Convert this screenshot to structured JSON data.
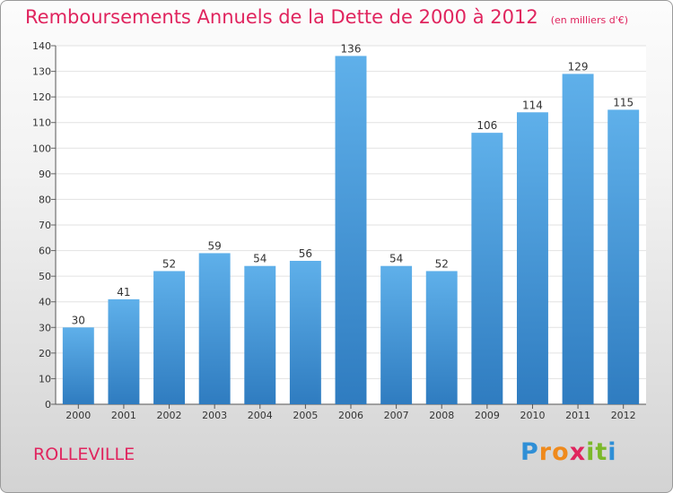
{
  "chart_data": {
    "type": "bar",
    "title": "Remboursements Annuels de la Dette de 2000 à 2012",
    "unit_note": "(en milliers d'€)",
    "categories": [
      "2000",
      "2001",
      "2002",
      "2003",
      "2004",
      "2005",
      "2006",
      "2007",
      "2008",
      "2009",
      "2010",
      "2011",
      "2012"
    ],
    "values": [
      30,
      41,
      52,
      59,
      54,
      56,
      136,
      54,
      52,
      106,
      114,
      129,
      115
    ],
    "ylim": [
      0,
      140
    ],
    "yticks": [
      0,
      10,
      20,
      30,
      40,
      50,
      60,
      70,
      80,
      90,
      100,
      110,
      120,
      130,
      140
    ],
    "grid": true,
    "bar_color": "#4a9ad8",
    "title_color": "#e0245e"
  },
  "commune": "ROLLEVILLE",
  "logo": {
    "letters": [
      "P",
      "r",
      "o",
      "x",
      "i",
      "t",
      "i"
    ],
    "colors": [
      "#2f8fd6",
      "#ef8a1c",
      "#ef8a1c",
      "#e0245e",
      "#7bb82a",
      "#7bb82a",
      "#2f8fd6"
    ]
  }
}
